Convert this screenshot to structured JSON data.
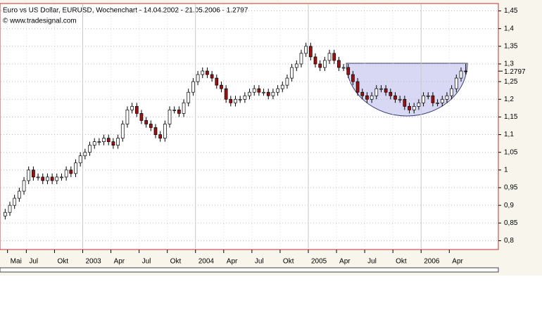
{
  "chart_data": {
    "type": "candlestick",
    "title": "Euro vs US Dollar, EURUSD, Wochenchart - 14.04.2002 - 21.05.2006 - 1.2797",
    "subtitle": "© www.tradesignal.com",
    "categories": [
      null,
      "Mai",
      null,
      null,
      null,
      "Jul",
      null,
      null,
      null,
      null,
      null,
      "Okt",
      null,
      null,
      null,
      null,
      null,
      "2003",
      null,
      null,
      null,
      null,
      null,
      "Apr",
      null,
      null,
      null,
      null,
      null,
      "Jul",
      null,
      null,
      null,
      null,
      null,
      "Okt",
      null,
      null,
      null,
      null,
      null,
      "2004",
      null,
      null,
      null,
      null,
      null,
      "Apr",
      null,
      null,
      null,
      null,
      null,
      "Jul",
      null,
      null,
      null,
      null,
      null,
      "Okt",
      null,
      null,
      null,
      null,
      null,
      "2005",
      null,
      null,
      null,
      null,
      null,
      "Apr",
      null,
      null,
      null,
      null,
      null,
      "Jul",
      null,
      null,
      null,
      null,
      null,
      "Okt",
      null,
      null,
      null,
      null,
      null,
      "2006",
      null,
      null,
      null,
      null,
      null,
      "Apr",
      null,
      null,
      null
    ],
    "open": [
      0.87,
      0.88,
      0.9,
      0.92,
      0.94,
      0.97,
      1.0,
      0.98,
      0.98,
      0.97,
      0.98,
      0.97,
      0.98,
      0.98,
      1.0,
      0.99,
      1.02,
      1.04,
      1.05,
      1.07,
      1.08,
      1.08,
      1.09,
      1.08,
      1.07,
      1.09,
      1.13,
      1.17,
      1.18,
      1.16,
      1.14,
      1.13,
      1.12,
      1.1,
      1.09,
      1.13,
      1.17,
      1.17,
      1.16,
      1.19,
      1.22,
      1.25,
      1.27,
      1.28,
      1.27,
      1.26,
      1.24,
      1.23,
      1.2,
      1.19,
      1.2,
      1.2,
      1.21,
      1.22,
      1.23,
      1.22,
      1.22,
      1.21,
      1.22,
      1.23,
      1.24,
      1.26,
      1.29,
      1.3,
      1.33,
      1.35,
      1.32,
      1.3,
      1.29,
      1.31,
      1.33,
      1.31,
      1.29,
      1.29,
      1.27,
      1.25,
      1.22,
      1.21,
      1.2,
      1.21,
      1.23,
      1.23,
      1.22,
      1.21,
      1.2,
      1.2,
      1.18,
      1.17,
      1.18,
      1.19,
      1.21,
      1.21,
      1.19,
      1.19,
      1.2,
      1.21,
      1.23,
      1.26,
      1.28
    ],
    "high": [
      0.89,
      0.91,
      0.93,
      0.95,
      0.98,
      1.01,
      1.01,
      0.99,
      0.99,
      0.99,
      0.99,
      0.99,
      0.99,
      1.01,
      1.01,
      1.03,
      1.05,
      1.06,
      1.08,
      1.09,
      1.09,
      1.1,
      1.1,
      1.09,
      1.1,
      1.14,
      1.18,
      1.19,
      1.19,
      1.17,
      1.15,
      1.14,
      1.13,
      1.11,
      1.14,
      1.18,
      1.18,
      1.18,
      1.2,
      1.23,
      1.26,
      1.28,
      1.29,
      1.29,
      1.28,
      1.27,
      1.25,
      1.24,
      1.21,
      1.21,
      1.21,
      1.22,
      1.23,
      1.24,
      1.24,
      1.23,
      1.23,
      1.23,
      1.24,
      1.25,
      1.27,
      1.3,
      1.31,
      1.34,
      1.36,
      1.36,
      1.33,
      1.31,
      1.32,
      1.34,
      1.34,
      1.32,
      1.3,
      1.3,
      1.28,
      1.26,
      1.23,
      1.22,
      1.22,
      1.24,
      1.24,
      1.24,
      1.23,
      1.22,
      1.21,
      1.21,
      1.19,
      1.19,
      1.2,
      1.22,
      1.22,
      1.22,
      1.2,
      1.21,
      1.22,
      1.24,
      1.27,
      1.29,
      1.3
    ],
    "low": [
      0.86,
      0.87,
      0.89,
      0.91,
      0.93,
      0.96,
      0.97,
      0.97,
      0.96,
      0.96,
      0.96,
      0.96,
      0.97,
      0.97,
      0.98,
      0.98,
      1.01,
      1.03,
      1.04,
      1.06,
      1.07,
      1.07,
      1.07,
      1.06,
      1.06,
      1.08,
      1.12,
      1.16,
      1.15,
      1.13,
      1.12,
      1.11,
      1.09,
      1.08,
      1.08,
      1.12,
      1.16,
      1.15,
      1.15,
      1.18,
      1.21,
      1.24,
      1.26,
      1.26,
      1.25,
      1.23,
      1.22,
      1.19,
      1.18,
      1.18,
      1.19,
      1.19,
      1.2,
      1.21,
      1.21,
      1.21,
      1.2,
      1.2,
      1.21,
      1.22,
      1.23,
      1.25,
      1.28,
      1.29,
      1.32,
      1.31,
      1.29,
      1.28,
      1.28,
      1.3,
      1.3,
      1.28,
      1.28,
      1.26,
      1.24,
      1.21,
      1.2,
      1.19,
      1.19,
      1.2,
      1.22,
      1.21,
      1.2,
      1.19,
      1.19,
      1.17,
      1.16,
      1.16,
      1.17,
      1.18,
      1.2,
      1.18,
      1.18,
      1.18,
      1.19,
      1.2,
      1.22,
      1.25,
      1.27
    ],
    "close": [
      0.88,
      0.9,
      0.92,
      0.94,
      0.97,
      1.0,
      0.98,
      0.98,
      0.97,
      0.98,
      0.97,
      0.98,
      0.98,
      1.0,
      0.99,
      1.02,
      1.04,
      1.05,
      1.07,
      1.08,
      1.08,
      1.09,
      1.08,
      1.07,
      1.09,
      1.13,
      1.17,
      1.18,
      1.16,
      1.14,
      1.13,
      1.12,
      1.1,
      1.09,
      1.13,
      1.17,
      1.17,
      1.16,
      1.19,
      1.22,
      1.25,
      1.27,
      1.28,
      1.27,
      1.26,
      1.24,
      1.23,
      1.2,
      1.19,
      1.2,
      1.2,
      1.21,
      1.22,
      1.23,
      1.22,
      1.22,
      1.21,
      1.22,
      1.23,
      1.24,
      1.26,
      1.29,
      1.3,
      1.33,
      1.35,
      1.32,
      1.3,
      1.29,
      1.31,
      1.33,
      1.31,
      1.29,
      1.29,
      1.27,
      1.25,
      1.22,
      1.21,
      1.2,
      1.21,
      1.23,
      1.23,
      1.22,
      1.21,
      1.2,
      1.2,
      1.18,
      1.17,
      1.18,
      1.19,
      1.21,
      1.21,
      1.19,
      1.19,
      1.2,
      1.21,
      1.23,
      1.26,
      1.28,
      1.2797
    ],
    "up_color": "#ffffff",
    "down_color": "#a01010",
    "ylim": [
      0.775,
      1.465
    ],
    "yticks": [
      {
        "value": 1.45,
        "label": "1,45"
      },
      {
        "value": 1.4,
        "label": "1,4"
      },
      {
        "value": 1.35,
        "label": "1,35"
      },
      {
        "value": 1.3,
        "label": "1,3"
      },
      {
        "value": 1.25,
        "label": "1,25"
      },
      {
        "value": 1.2,
        "label": "1,2"
      },
      {
        "value": 1.15,
        "label": "1,15"
      },
      {
        "value": 1.1,
        "label": "1,1"
      },
      {
        "value": 1.05,
        "label": "1,05"
      },
      1,
      {
        "value": 0.95,
        "label": "0,95"
      },
      {
        "value": 0.9,
        "label": "0,9"
      },
      {
        "value": 0.85,
        "label": "0,85"
      },
      {
        "value": 0.8,
        "label": "0,8"
      }
    ],
    "grid": true
  }
}
